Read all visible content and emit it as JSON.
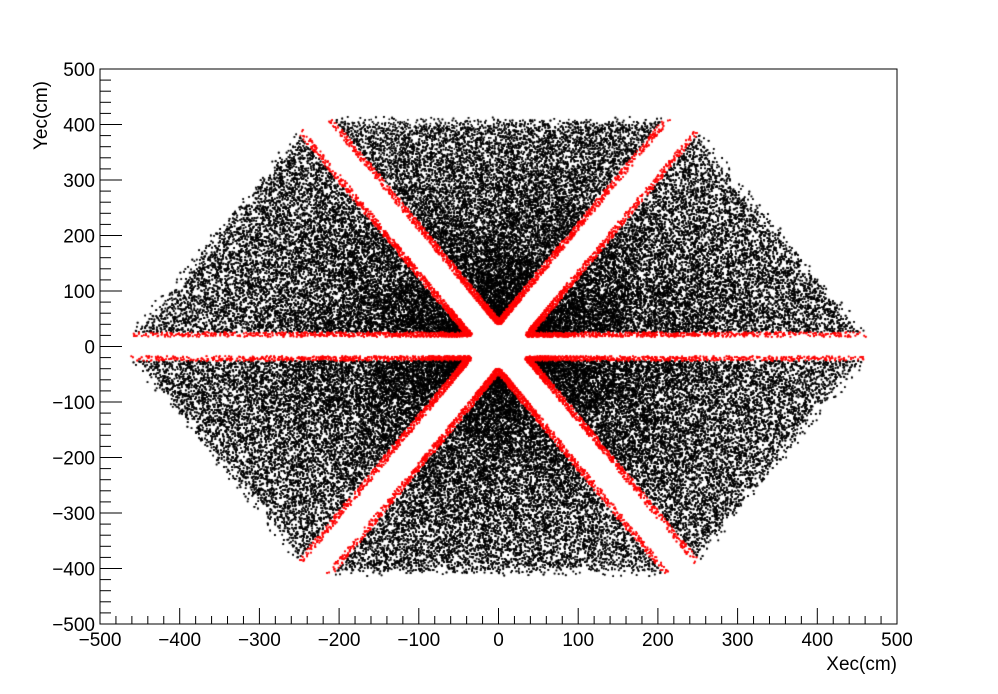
{
  "chart_data": {
    "type": "scatter",
    "title": "",
    "xlabel": "Xec(cm)",
    "ylabel": "Yec(cm)",
    "xlim": [
      -500,
      500
    ],
    "ylim": [
      -500,
      500
    ],
    "x_ticks": [
      "−500",
      "−400",
      "−300",
      "−200",
      "−100",
      "0",
      "100",
      "200",
      "300",
      "400",
      "500"
    ],
    "y_ticks": [
      "−500",
      "−400",
      "−300",
      "−200",
      "−100",
      "0",
      "100",
      "200",
      "300",
      "400",
      "500"
    ],
    "grid": false,
    "legend": "none",
    "series": [
      {
        "color": "#000000",
        "marker": "dot",
        "shape": "six triangular sectors of a hexagon",
        "sector_centers_deg": [
          90,
          150,
          210,
          270,
          330,
          30
        ],
        "inner_radius_cm": 40,
        "outer_radius_cm": 400
      },
      {
        "color": "#ff0000",
        "marker": "dot",
        "shape": "thin bands along the sector edges next to the gaps",
        "band_width_cm": 10
      }
    ]
  }
}
